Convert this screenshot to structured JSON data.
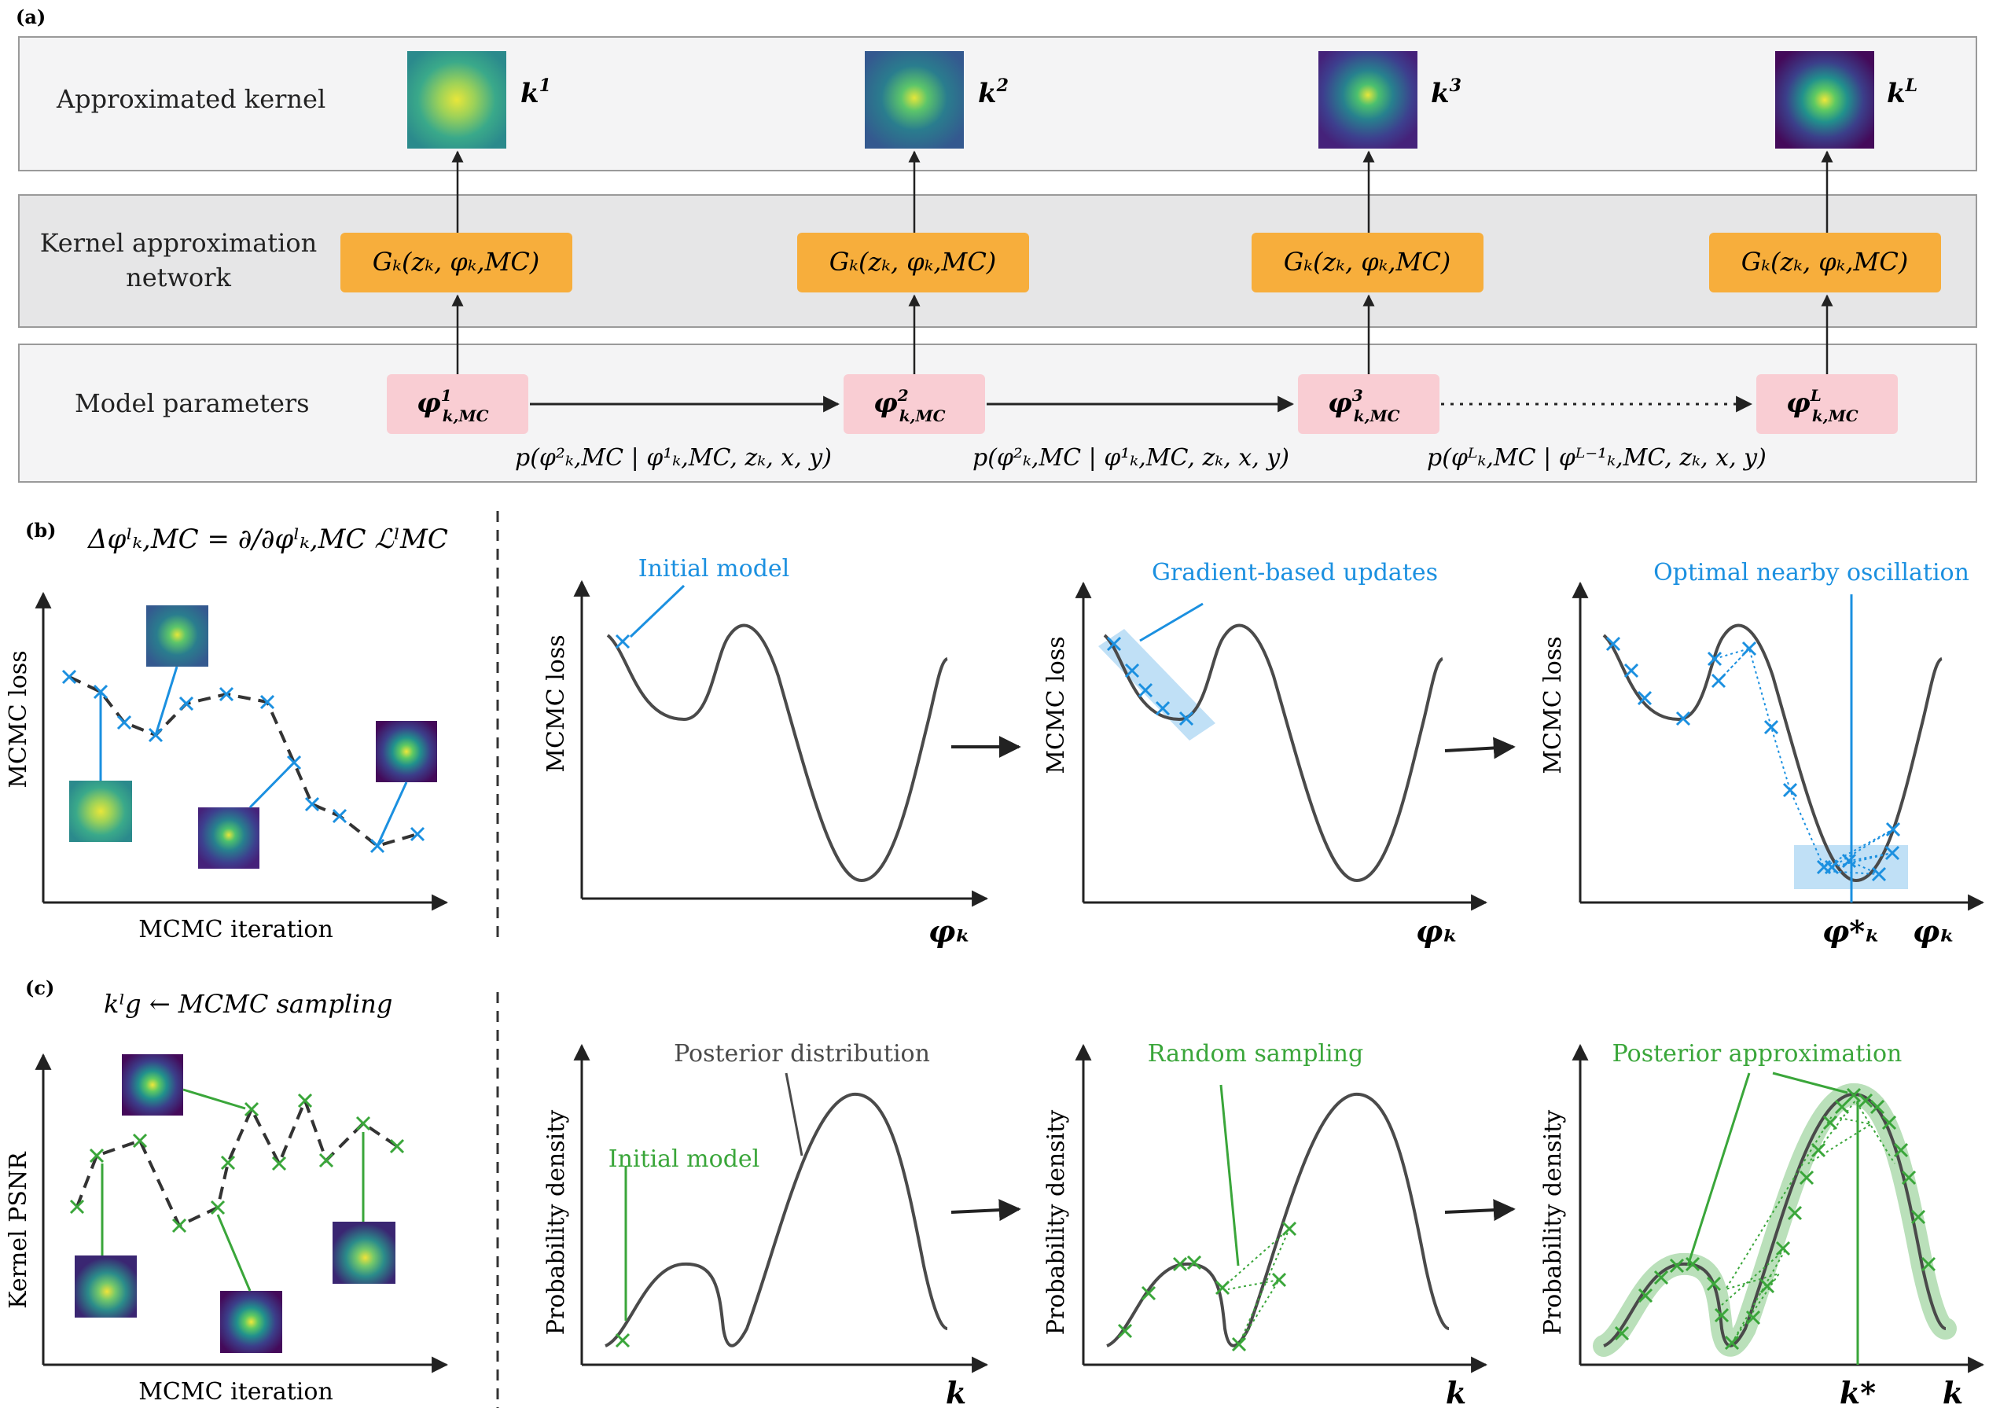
{
  "panel_labels": {
    "a": "(a)",
    "b": "(b)",
    "c": "(c)"
  },
  "colors": {
    "row_bg_light": "#f4f4f5",
    "row_bg_dark": "#e6e6e7",
    "row_border": "#9a9a9a",
    "network_box": "#f7ae3c",
    "param_box": "#f9cdd3",
    "blue": "#1b90e0",
    "green": "#3aa63a",
    "curve": "#4a4a4a",
    "dashed": "#333333"
  },
  "panel_a": {
    "rows": [
      {
        "label": "Approximated kernel"
      },
      {
        "label_line1": "Kernel approximation",
        "label_line2": "network"
      },
      {
        "label": "Model parameters"
      }
    ],
    "kernel_labels": [
      "k",
      "k",
      "k",
      "k"
    ],
    "kernel_sups": [
      "1",
      "2",
      "3",
      "L"
    ],
    "network_label": "Gₖ(zₖ, φₖ,MC)",
    "param_base": "φ",
    "param_sub": "k,MC",
    "param_sups": [
      "1",
      "2",
      "3",
      "L"
    ],
    "transition_labels": [
      "p(φ²ₖ,MC | φ¹ₖ,MC, zₖ, x, y)",
      "p(φ²ₖ,MC | φ¹ₖ,MC, zₖ, x, y)",
      "p(φᴸₖ,MC | φᴸ⁻¹ₖ,MC, zₖ, x, y)"
    ],
    "kernel_palettes": [
      "teal",
      "blue",
      "purple",
      "darkpurple"
    ]
  },
  "panel_b": {
    "formula": "Δφˡₖ,MC = ∂/∂φˡₖ,MC ℒˡMC",
    "left_xlabel": "MCMC iteration",
    "left_ylabel": "MCMC loss",
    "ylabel": "MCMC loss",
    "xlabel": "φₖ",
    "annotations": [
      "Initial model",
      "Gradient-based updates",
      "Optimal nearby oscillation"
    ],
    "optimum_label": "φ*ₖ"
  },
  "panel_c": {
    "formula": "kˡg ← MCMC sampling",
    "left_xlabel": "MCMC iteration",
    "left_ylabel": "Kernel PSNR",
    "ylabel": "Probability density",
    "xlabel": "k",
    "annotations": [
      "Posterior distribution",
      "Initial model",
      "Random sampling",
      "Posterior approximation"
    ],
    "optimum_label": "k*"
  }
}
